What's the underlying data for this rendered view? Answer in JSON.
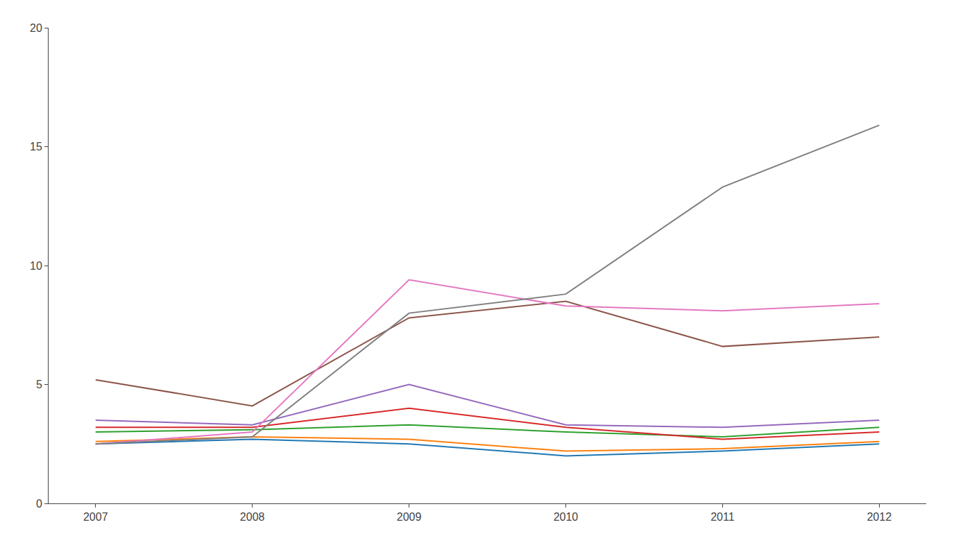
{
  "chart_data": {
    "type": "line",
    "x": [
      2007,
      2008,
      2009,
      2010,
      2011,
      2012
    ],
    "series": [
      {
        "values": [
          2.5,
          2.7,
          2.5,
          2.0,
          2.2,
          2.5
        ]
      },
      {
        "values": [
          2.6,
          2.8,
          2.7,
          2.2,
          2.3,
          2.6
        ]
      },
      {
        "values": [
          3.0,
          3.1,
          3.3,
          3.0,
          2.8,
          3.2
        ]
      },
      {
        "values": [
          3.2,
          3.2,
          4.0,
          3.2,
          2.7,
          3.0
        ]
      },
      {
        "values": [
          3.5,
          3.3,
          5.0,
          3.3,
          3.2,
          3.5
        ]
      },
      {
        "values": [
          5.2,
          4.1,
          7.8,
          8.5,
          6.6,
          7.0
        ]
      },
      {
        "values": [
          2.5,
          3.0,
          9.4,
          8.3,
          8.1,
          8.4
        ]
      },
      {
        "values": [
          2.5,
          2.8,
          8.0,
          8.8,
          13.3,
          15.9
        ]
      }
    ],
    "xlim": [
      2006.7,
      2012.3
    ],
    "xticks": [
      2007,
      2008,
      2009,
      2010,
      2011,
      2012
    ],
    "ylim": [
      0,
      20
    ],
    "yticks": [
      0,
      5,
      10,
      15,
      20
    ],
    "grid": false
  }
}
